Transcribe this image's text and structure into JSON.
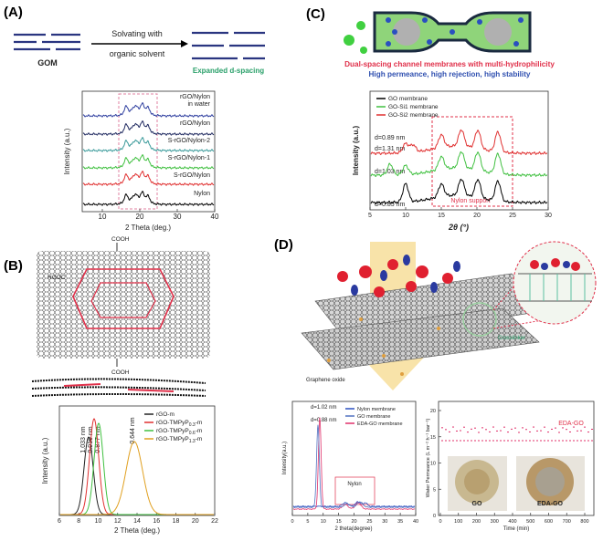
{
  "panel_a": {
    "label": "(A)",
    "scheme": {
      "left": "GOM",
      "arrow_line1": "Solvating with",
      "arrow_line2": "organic solvent",
      "right": "Expanded d-spacing"
    },
    "plot": {
      "x_label": "2 Theta (deg.)",
      "y_label": "Intensity (a.u.)",
      "xticks": [
        10,
        20,
        30,
        40
      ],
      "curves": [
        {
          "name_line1": "rGO/Nylon",
          "name_line2": "in water"
        },
        {
          "name": "rGO/Nylon"
        },
        {
          "name": "S-rGO/Nylon-2"
        },
        {
          "name": "S-rGO/Nylon-1"
        },
        {
          "name": "S-rGO/Nylon"
        },
        {
          "name": "Nylon"
        }
      ]
    }
  },
  "panel_b": {
    "label": "(B)",
    "structure": {
      "top": "COOH",
      "left": "HOOC",
      "bottom": "COOH"
    },
    "plot": {
      "x_label": "2 Theta (deg.)",
      "y_label": "Intensity (a.u.)",
      "xticks": [
        6,
        8,
        10,
        12,
        14,
        16,
        18,
        20,
        22
      ],
      "annotations": [
        "1.033 nm",
        "0.919 nm",
        "0.877 nm",
        "0.644 nm"
      ],
      "legend": [
        {
          "base": "rGO-m",
          "sub": "",
          "tail": ""
        },
        {
          "base": "rGO-TMPyP",
          "sub": "0.3",
          "tail": "-m"
        },
        {
          "base": "rGO-TMPyP",
          "sub": "0.6",
          "tail": "-m"
        },
        {
          "base": "rGO-TMPyP",
          "sub": "1.3",
          "tail": "-m"
        }
      ]
    }
  },
  "panel_c": {
    "label": "(C)",
    "headline": "Dual-spacing channel membranes with multi-hydrophilicity",
    "subline": "High permeance, high rejection, high stability",
    "plot": {
      "x_label": "2θ (°)",
      "y_label": "Intensity (a.u.)",
      "xticks": [
        5,
        10,
        15,
        20,
        25,
        30
      ],
      "legend": [
        "GO membrane",
        "GO-Si1 membrane",
        "GO-Si2 membrane"
      ],
      "annotations": [
        "d=0.89 nm",
        "d=1.31 nm",
        "d=1.03 nm",
        "d=0.85 nm",
        "Nylon support"
      ]
    }
  },
  "panel_d": {
    "label": "(D)",
    "scheme": {
      "crosslinker": "Crosslinker",
      "sheet": "Graphene oxide"
    },
    "xrd": {
      "x_label": "2 theta(degree)",
      "y_label": "Intensity(a.u.)",
      "xticks": [
        0,
        5,
        10,
        15,
        20,
        25,
        30,
        35,
        40
      ],
      "legend": [
        "Nylon membrane",
        "GO membrane",
        "EDA-GO membrane"
      ],
      "annotations": [
        "d=1.02 nm",
        "d=0.88 nm",
        "Nylon"
      ]
    },
    "permeance": {
      "x_label": "Time (min)",
      "y_label": "Water Permeance (L m⁻² h⁻¹ bar⁻¹)",
      "xticks": [
        0,
        100,
        200,
        300,
        400,
        500,
        600,
        700,
        800
      ],
      "yticks": [
        0,
        5,
        10,
        15,
        20
      ],
      "series_label": "EDA-GO",
      "photos": [
        "GO",
        "EDA-GO"
      ]
    }
  }
}
